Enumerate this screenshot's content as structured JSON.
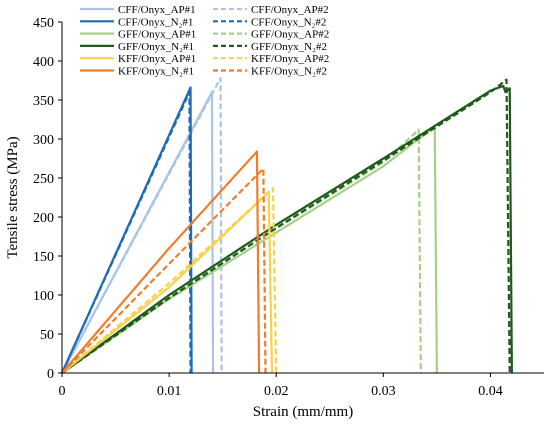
{
  "chart_data": {
    "type": "line",
    "xlabel": "Strain (mm/mm)",
    "ylabel": "Tensile stress (MPa)",
    "xlim": [
      0,
      0.045
    ],
    "ylim": [
      0,
      450
    ],
    "x_ticks": [
      "0",
      "0.01",
      "0.02",
      "0.03",
      "0.04"
    ],
    "x_tick_values": [
      0,
      0.01,
      0.02,
      0.03,
      0.04
    ],
    "y_ticks": [
      "0",
      "50",
      "100",
      "150",
      "200",
      "250",
      "300",
      "350",
      "400",
      "450"
    ],
    "y_tick_values": [
      0,
      50,
      100,
      150,
      200,
      250,
      300,
      350,
      400,
      450
    ],
    "grid": false,
    "legend_position": "top-left",
    "series": [
      {
        "name": "CFF/Onyx_AP#1",
        "color": "#a9c4e4",
        "dash": "solid",
        "points": [
          [
            0,
            0
          ],
          [
            0.014,
            360
          ],
          [
            0.0141,
            0
          ]
        ]
      },
      {
        "name": "CFF/Onyx_AP#2",
        "color": "#a9c4e4",
        "dash": "dashed",
        "points": [
          [
            0,
            0
          ],
          [
            0.0148,
            378
          ],
          [
            0.0149,
            0
          ]
        ]
      },
      {
        "name": "CFF/Onyx_N₂#1",
        "color": "#1f6bb5",
        "dash": "solid",
        "points": [
          [
            0,
            0
          ],
          [
            0.012,
            366
          ],
          [
            0.0121,
            0
          ]
        ]
      },
      {
        "name": "CFF/Onyx_N₂#2",
        "color": "#1f6bb5",
        "dash": "dashed",
        "points": [
          [
            0,
            0
          ],
          [
            0.0119,
            360
          ],
          [
            0.012,
            0
          ]
        ]
      },
      {
        "name": "GFF/Onyx_AP#1",
        "color": "#a6d08a",
        "dash": "solid",
        "points": [
          [
            0,
            0
          ],
          [
            0.01,
            95
          ],
          [
            0.02,
            180
          ],
          [
            0.03,
            265
          ],
          [
            0.0345,
            313
          ],
          [
            0.0348,
            313
          ],
          [
            0.035,
            0
          ]
        ]
      },
      {
        "name": "GFF/Onyx_AP#2",
        "color": "#a6d08a",
        "dash": "dashed",
        "points": [
          [
            0,
            0
          ],
          [
            0.01,
            98
          ],
          [
            0.02,
            185
          ],
          [
            0.03,
            270
          ],
          [
            0.0333,
            312
          ],
          [
            0.0335,
            0
          ]
        ]
      },
      {
        "name": "GFF/Onyx_N₂#1",
        "color": "#1e5a1a",
        "dash": "solid",
        "points": [
          [
            0,
            0
          ],
          [
            0.01,
            100
          ],
          [
            0.02,
            190
          ],
          [
            0.03,
            275
          ],
          [
            0.04,
            362
          ],
          [
            0.0412,
            368
          ],
          [
            0.0414,
            360
          ],
          [
            0.0418,
            365
          ],
          [
            0.042,
            0
          ]
        ]
      },
      {
        "name": "GFF/Onyx_N₂#2",
        "color": "#1e5a1a",
        "dash": "dashed",
        "points": [
          [
            0,
            0
          ],
          [
            0.01,
            96
          ],
          [
            0.02,
            186
          ],
          [
            0.03,
            272
          ],
          [
            0.04,
            360
          ],
          [
            0.0415,
            376
          ],
          [
            0.0418,
            0
          ]
        ]
      },
      {
        "name": "KFF/Onyx_AP#1",
        "color": "#f7d24a",
        "dash": "solid",
        "points": [
          [
            0,
            0
          ],
          [
            0.01,
            110
          ],
          [
            0.0193,
            232
          ],
          [
            0.0196,
            0
          ]
        ]
      },
      {
        "name": "KFF/Onyx_AP#2",
        "color": "#f7d24a",
        "dash": "dashed",
        "points": [
          [
            0,
            0
          ],
          [
            0.01,
            115
          ],
          [
            0.0197,
            237
          ],
          [
            0.02,
            0
          ]
        ]
      },
      {
        "name": "KFF/Onyx_N₂#1",
        "color": "#ef7d2c",
        "dash": "solid",
        "points": [
          [
            0,
            0
          ],
          [
            0.01,
            160
          ],
          [
            0.0182,
            284
          ],
          [
            0.0184,
            0
          ]
        ]
      },
      {
        "name": "KFF/Onyx_N₂#2",
        "color": "#ef7d2c",
        "dash": "dashed",
        "points": [
          [
            0,
            0
          ],
          [
            0.01,
            140
          ],
          [
            0.0188,
            262
          ],
          [
            0.019,
            0
          ]
        ]
      }
    ]
  }
}
